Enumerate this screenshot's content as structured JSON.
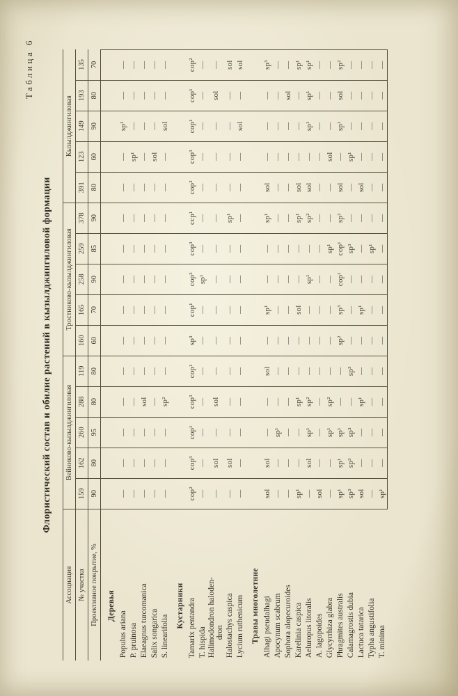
{
  "page": {
    "table_label": "Таблица 6",
    "title": "Флористический состав и обилие растений в кызылджингиловой формации"
  },
  "header": {
    "association_label": "Ассоциация",
    "plot_label": "№ участка",
    "cover_label": "Проективное покрытие, %",
    "groups": [
      {
        "name": "Вейниково-кызылджингиловая",
        "span": 5
      },
      {
        "name": "Тростниково-кызылджингиловая",
        "span": 5
      },
      {
        "name": "Кызылджингиловая",
        "span": 5
      }
    ],
    "plots": [
      "159",
      "162",
      "260",
      "288",
      "119",
      "160",
      "165",
      "258",
      "259",
      "378",
      "391",
      "123",
      "149",
      "193",
      "135"
    ],
    "cover": [
      "90",
      "80",
      "95",
      "80",
      "80",
      "60",
      "70",
      "90",
      "85",
      "90",
      "80",
      "60",
      "90",
      "80",
      "70"
    ]
  },
  "sections": [
    {
      "title": "Деревья",
      "rows": [
        {
          "name": "Populus ariana",
          "values": [
            "—",
            "—",
            "—",
            "—",
            "—",
            "—",
            "—",
            "—",
            "—",
            "—",
            "—",
            "—",
            "sp¹",
            "—",
            "—"
          ]
        },
        {
          "name": "P. pruinosa",
          "values": [
            "—",
            "—",
            "—",
            "—",
            "—",
            "—",
            "—",
            "—",
            "—",
            "—",
            "—",
            "sp¹",
            "—",
            "—",
            "—"
          ]
        },
        {
          "name": "Elaeagnus turcomanica",
          "values": [
            "—",
            "—",
            "—",
            "sol",
            "—",
            "—",
            "—",
            "—",
            "—",
            "—",
            "—",
            "—",
            "—",
            "—",
            "—"
          ]
        },
        {
          "name": "Salix songarica",
          "values": [
            "—",
            "—",
            "—",
            "—",
            "—",
            "—",
            "—",
            "—",
            "—",
            "—",
            "—",
            "sol",
            "—",
            "—",
            "—"
          ]
        },
        {
          "name": "S. linearifolia",
          "values": [
            "—",
            "—",
            "—",
            "sp²",
            "—",
            "—",
            "—",
            "—",
            "—",
            "—",
            "—",
            "—",
            "sol",
            "—",
            "—"
          ]
        }
      ]
    },
    {
      "title": "Кустарники",
      "rows": [
        {
          "name": "Tamarix pentandra",
          "values": [
            "cop²",
            "cop³",
            "cop¹",
            "cop³",
            "cop¹",
            "sp³",
            "cop¹",
            "cop³",
            "cop³",
            "ccp¹",
            "cop²",
            "cop³",
            "cop¹",
            "cop¹",
            "cop²"
          ]
        },
        {
          "name": "T. hispida",
          "values": [
            "—",
            "—",
            "—",
            "—",
            "—",
            "—",
            "—",
            "sp¹",
            "—",
            "—",
            "—",
            "—",
            "—",
            "—",
            "—"
          ]
        },
        {
          "name": "Halimodondron haloden-",
          "name2": "dron",
          "values": [
            "—",
            "sol",
            "—",
            "sol",
            "—",
            "—",
            "—",
            "—",
            "—",
            "—",
            "—",
            "—",
            "—",
            "sol",
            "—"
          ]
        },
        {
          "name": "Halostachys caspica",
          "values": [
            "—",
            "sol",
            "—",
            "—",
            "—",
            "—",
            "—",
            "—",
            "—",
            "sp¹",
            "—",
            "—",
            "—",
            "—",
            "sol"
          ]
        },
        {
          "name": "Lycium ruthenicum",
          "values": [
            "—",
            "—",
            "—",
            "—",
            "—",
            "—",
            "—",
            "—",
            "—",
            "—",
            "—",
            "—",
            "sol",
            "—",
            "sol"
          ]
        }
      ]
    },
    {
      "title": "Травы многолетние",
      "rows": [
        {
          "name": "Alhagi pseudalhagi",
          "values": [
            "sol",
            "sol",
            "—",
            "—",
            "sol",
            "—",
            "sp¹",
            "—",
            "—",
            "sp¹",
            "sol",
            "—",
            "—",
            "—",
            "sp³"
          ]
        },
        {
          "name": "Apocynum scabrum",
          "values": [
            "—",
            "—",
            "sp¹",
            "—",
            "—",
            "—",
            "—",
            "—",
            "—",
            "—",
            "—",
            "—",
            "—",
            "—",
            "—"
          ]
        },
        {
          "name": "Sophora alopecuroides",
          "values": [
            "—",
            "—",
            "—",
            "—",
            "—",
            "—",
            "—",
            "—",
            "—",
            "—",
            "—",
            "—",
            "—",
            "sol",
            "—"
          ]
        },
        {
          "name": "Karelinia caspica",
          "values": [
            "sp¹",
            "—",
            "—",
            "sp¹",
            "—",
            "—",
            "sol",
            "—",
            "—",
            "sp¹",
            "sol",
            "—",
            "—",
            "—",
            "sp¹"
          ]
        },
        {
          "name": "Aeluropus litoralis",
          "values": [
            "—",
            "sol",
            "sp¹",
            "sp²",
            "—",
            "—",
            "—",
            "sp¹",
            "—",
            "sp²",
            "sol",
            "—",
            "sp¹",
            "sp¹",
            "sp¹"
          ]
        },
        {
          "name": "A. lagopoides",
          "values": [
            "sol",
            "—",
            "—",
            "—",
            "—",
            "—",
            "—",
            "—",
            "—",
            "—",
            "—",
            "—",
            "—",
            "—",
            "—"
          ]
        },
        {
          "name": "Glycyrrhiza glabra",
          "values": [
            "—",
            "—",
            "sp¹",
            "sp²",
            "—",
            "—",
            "—",
            "—",
            "sp¹",
            "—",
            "—",
            "sol",
            "—",
            "—",
            "—"
          ]
        },
        {
          "name": "Phragmites australis",
          "values": [
            "sp¹",
            "sp¹",
            "sp¹",
            "—",
            "—",
            "sp²",
            "sp³",
            "cop¹",
            "cop¹",
            "sp²",
            "sol",
            "—",
            "sp¹",
            "sol",
            "sp²"
          ]
        },
        {
          "name": "Calamagrostis dubia",
          "values": [
            "sp³",
            "sp³",
            "sp³",
            "—",
            "sp³",
            "—",
            "—",
            "—",
            "sp³",
            "—",
            "—",
            "sp¹",
            "—",
            "—",
            "—"
          ]
        },
        {
          "name": "Lactuca tatarica",
          "values": [
            "sol",
            "—",
            "—",
            "sp¹",
            "—",
            "—",
            "sp¹",
            "—",
            "—",
            "—",
            "sol",
            "—",
            "—",
            "—",
            "—"
          ]
        },
        {
          "name": "Typha angustifolia",
          "values": [
            "—",
            "—",
            "—",
            "—",
            "—",
            "—",
            "—",
            "—",
            "sp¹",
            "—",
            "—",
            "—",
            "—",
            "—",
            "—"
          ]
        },
        {
          "name": "T. minima",
          "values": [
            "sp¹",
            "—",
            "—",
            "—",
            "—",
            "—",
            "—",
            "—",
            "—",
            "—",
            "—",
            "—",
            "—",
            "—",
            "—"
          ]
        }
      ]
    }
  ]
}
